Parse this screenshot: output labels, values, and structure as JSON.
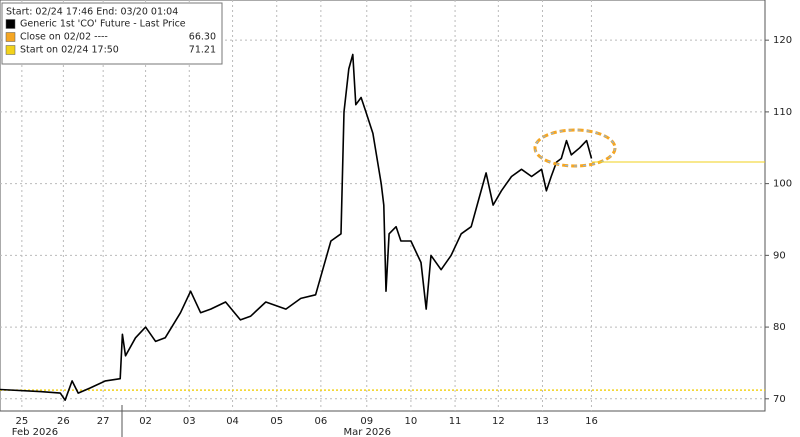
{
  "chart_data": {
    "type": "line",
    "legend_header": "Start: 02/24 17:46 End: 03/20 01:04",
    "series": [
      {
        "name": "Generic 1st 'CO' Future - Last Price",
        "color": "#000000",
        "x": [
          0,
          0.92,
          1.38,
          1.49,
          1.65,
          1.79,
          2.06,
          2.41,
          2.75,
          2.8,
          2.87,
          3.1,
          3.33,
          3.56,
          3.78,
          4.13,
          4.36,
          4.59,
          4.82,
          5.16,
          5.5,
          5.73,
          6.08,
          6.54,
          6.88,
          7.22,
          7.57,
          7.8,
          7.87,
          7.98,
          8.07,
          8.14,
          8.26,
          8.37,
          8.53,
          8.72,
          8.78,
          8.83,
          8.9,
          9.06,
          9.17,
          9.4,
          9.63,
          9.75,
          9.86,
          10.09,
          10.32,
          10.55,
          10.78,
          10.96,
          11.12,
          11.28,
          11.47,
          11.7,
          11.93,
          12.16,
          12.39,
          12.5,
          12.61,
          12.73,
          12.84,
          12.96,
          13.07,
          13.26,
          13.42,
          13.53
        ],
        "values": [
          71.3,
          71.0,
          70.8,
          69.8,
          72.5,
          70.8,
          71.5,
          72.5,
          72.8,
          79,
          76,
          78.5,
          80,
          78,
          78.5,
          82,
          85,
          82,
          82.5,
          83.5,
          81,
          81.5,
          83.5,
          82.5,
          84,
          84.5,
          92,
          93,
          110,
          116,
          118,
          111,
          112,
          110,
          107,
          100,
          97,
          85,
          93,
          94,
          92,
          92,
          89,
          82.5,
          90,
          88,
          90,
          93,
          94,
          98,
          101.5,
          97,
          99,
          101,
          102,
          101,
          102,
          99,
          101,
          103,
          103.5,
          106,
          104,
          105,
          106,
          103.5
        ]
      }
    ],
    "reference_lines": [
      {
        "name": "Close on 02/02 ----",
        "color": "#f5a623",
        "value": 66.3,
        "value_label": "66.30"
      },
      {
        "name": "Start on 02/24 17:50",
        "color": "#f2d21b",
        "value": 71.21,
        "value_label": "71.21"
      }
    ],
    "xlim": [
      0,
      17.5
    ],
    "xticks": [
      {
        "value": 0.5,
        "label": "25"
      },
      {
        "value": 1.45,
        "label": "26"
      },
      {
        "value": 2.36,
        "label": "27"
      },
      {
        "value": 3.33,
        "label": "02"
      },
      {
        "value": 4.33,
        "label": "03"
      },
      {
        "value": 5.32,
        "label": "04"
      },
      {
        "value": 6.33,
        "label": "05"
      },
      {
        "value": 7.34,
        "label": "06"
      },
      {
        "value": 8.39,
        "label": "09"
      },
      {
        "value": 9.4,
        "label": "10"
      },
      {
        "value": 10.41,
        "label": "11"
      },
      {
        "value": 11.4,
        "label": "12"
      },
      {
        "value": 12.41,
        "label": "13"
      },
      {
        "value": 13.53,
        "label": "16"
      }
    ],
    "month_labels": [
      {
        "value": 0.8,
        "label": "Feb 2026"
      },
      {
        "value": 8.4,
        "label": "Mar 2026"
      }
    ],
    "ylim": [
      68.3,
      125.6
    ],
    "yticks": [
      70,
      80,
      90,
      100,
      110,
      120
    ],
    "grid": true
  }
}
